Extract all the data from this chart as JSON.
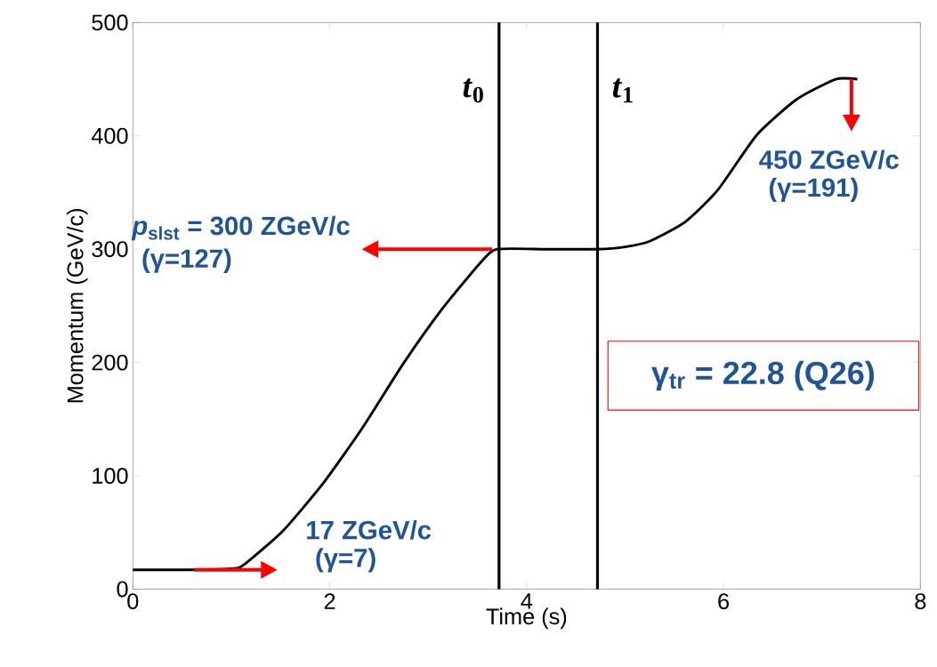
{
  "chart_data": {
    "type": "line",
    "xlabel": "Time (s)",
    "ylabel": "Momentum (GeV/c)",
    "x": [
      0,
      0.5,
      1.0,
      1.12,
      1.52,
      1.93,
      2.33,
      2.74,
      3.14,
      3.54,
      3.7,
      4.2,
      4.72,
      5.0,
      5.25,
      5.61,
      5.94,
      6.34,
      6.74,
      7.14,
      7.36
    ],
    "series": [
      {
        "color": "#000000",
        "values": [
          17,
          17,
          18,
          21,
          51,
          93,
          142,
          198,
          247,
          289,
          300,
          300,
          300,
          302,
          307,
          324,
          352,
          401,
          432,
          450,
          450
        ]
      }
    ],
    "xlim": [
      0,
      8
    ],
    "ylim": [
      0,
      500
    ],
    "xticks": [
      0,
      2,
      4,
      6,
      8
    ],
    "yticks": [
      0,
      100,
      200,
      300,
      400,
      500
    ],
    "grid": false,
    "marker": "none",
    "line_style": "solid",
    "ref_lines": [
      {
        "axis": "x",
        "value": 3.72,
        "label": "*t*$_{0}$",
        "color": "#000000"
      },
      {
        "axis": "x",
        "value": 4.72,
        "label": "*t*$_{1}$",
        "color": "#000000"
      }
    ],
    "annotations": [
      {
        "text": "*p*$_{slst}$ = 300 ZGeV/c",
        "x": 3.65,
        "y": 300
      },
      "(γ=127)",
      "17 ZGeV/c",
      "(γ=7)",
      {
        "text": "450 ZGeV/c",
        "x": 7.3,
        "y": 450
      },
      "(γ=191)",
      "γ$_{tr}$ = 22.8 (Q26)"
    ]
  }
}
